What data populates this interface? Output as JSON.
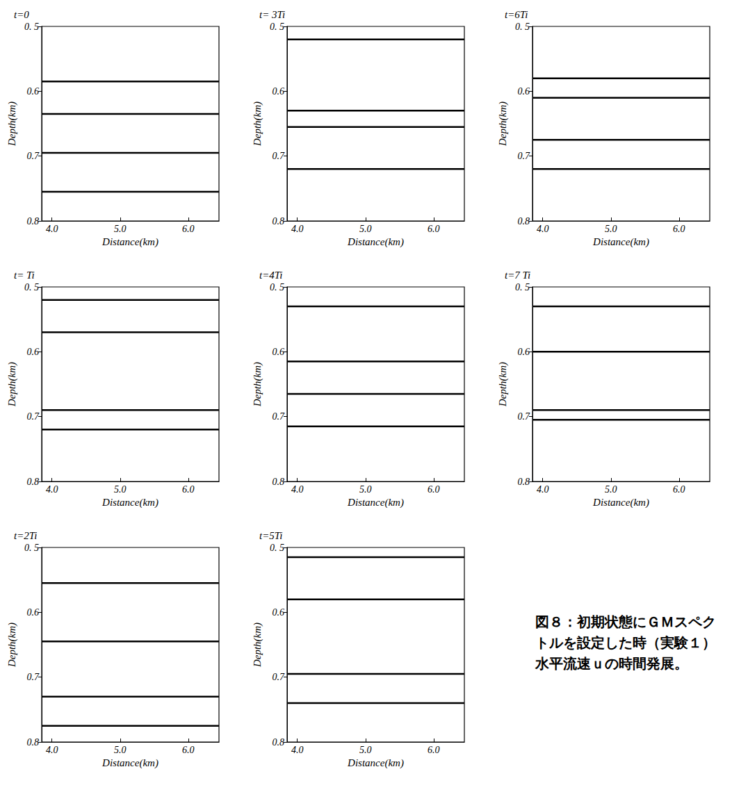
{
  "chart_data": [
    {
      "type": "contour",
      "title": "t=0",
      "x_label": "Distance(km)",
      "y_label": "Depth(km)",
      "xlim": [
        3.85,
        6.45
      ],
      "ylim": [
        0.5,
        0.8
      ],
      "xticks": [
        {
          "value": 4,
          "label": "4.0"
        },
        {
          "value": 5,
          "label": "5.0"
        },
        {
          "value": 6,
          "label": "6.0"
        }
      ],
      "yticks": [
        {
          "value": 0.5,
          "label": "0. 5"
        },
        0.6,
        0.7,
        0.8
      ],
      "layers": [
        0.585,
        0.635,
        0.695,
        0.755
      ],
      "color": "#000000"
    },
    {
      "type": "contour",
      "title": "t= Ti",
      "x_label": "Distance(km)",
      "y_label": "Depth(km)",
      "xlim": [
        3.85,
        6.45
      ],
      "ylim": [
        0.5,
        0.8
      ],
      "xticks": [
        {
          "value": 4,
          "label": "4.0"
        },
        {
          "value": 5,
          "label": "5.0"
        },
        {
          "value": 6,
          "label": "6.0"
        }
      ],
      "yticks": [
        {
          "value": 0.5,
          "label": "0. 5"
        },
        0.6,
        0.7,
        0.8
      ],
      "layers": [
        0.52,
        0.57,
        0.69,
        0.72
      ],
      "color": "#000000"
    },
    {
      "type": "contour",
      "title": "t=2Ti",
      "x_label": "Distance(km)",
      "y_label": "Depth(km)",
      "xlim": [
        3.85,
        6.45
      ],
      "ylim": [
        0.5,
        0.8
      ],
      "xticks": [
        {
          "value": 4,
          "label": "4.0"
        },
        {
          "value": 5,
          "label": "5.0"
        },
        {
          "value": 6,
          "label": "6.0"
        }
      ],
      "yticks": [
        {
          "value": 0.5,
          "label": "0. 5"
        },
        0.6,
        0.7,
        0.8
      ],
      "layers": [
        0.555,
        0.645,
        0.73,
        0.775
      ],
      "color": "#000000"
    },
    {
      "type": "contour",
      "title": "t= 3Ti",
      "x_label": "Distance(km)",
      "y_label": "Depth(km)",
      "xlim": [
        3.85,
        6.45
      ],
      "ylim": [
        0.5,
        0.8
      ],
      "xticks": [
        {
          "value": 4,
          "label": "4.0"
        },
        {
          "value": 5,
          "label": "5.0"
        },
        {
          "value": 6,
          "label": "6.0"
        }
      ],
      "yticks": [
        {
          "value": 0.5,
          "label": "0. 5"
        },
        0.6,
        0.7,
        0.8
      ],
      "layers": [
        0.52,
        0.63,
        0.655,
        0.72
      ],
      "color": "#000000"
    },
    {
      "type": "contour",
      "title": "t=4Ti",
      "x_label": "Distance(km)",
      "y_label": "Depth(km)",
      "xlim": [
        3.85,
        6.45
      ],
      "ylim": [
        0.5,
        0.8
      ],
      "xticks": [
        {
          "value": 4,
          "label": "4.0"
        },
        {
          "value": 5,
          "label": "5.0"
        },
        {
          "value": 6,
          "label": "6.0"
        }
      ],
      "yticks": [
        {
          "value": 0.5,
          "label": "0. 5"
        },
        0.6,
        0.7,
        0.8
      ],
      "layers": [
        0.53,
        0.615,
        0.665,
        0.715
      ],
      "color": "#000000"
    },
    {
      "type": "contour",
      "title": "t=5Ti",
      "x_label": "Distance(km)",
      "y_label": "Depth(km)",
      "xlim": [
        3.85,
        6.45
      ],
      "ylim": [
        0.5,
        0.8
      ],
      "xticks": [
        {
          "value": 4,
          "label": "4.0"
        },
        {
          "value": 5,
          "label": "5.0"
        },
        {
          "value": 6,
          "label": "6.0"
        }
      ],
      "yticks": [
        {
          "value": 0.5,
          "label": "0. 5"
        },
        0.6,
        0.7,
        0.8
      ],
      "layers": [
        0.515,
        0.58,
        0.695,
        0.74
      ],
      "color": "#000000"
    },
    {
      "type": "contour",
      "title": "t=6Ti",
      "x_label": "Distance(km)",
      "y_label": "Depth(km)",
      "xlim": [
        3.85,
        6.45
      ],
      "ylim": [
        0.5,
        0.8
      ],
      "xticks": [
        {
          "value": 4,
          "label": "4.0"
        },
        {
          "value": 5,
          "label": "5.0"
        },
        {
          "value": 6,
          "label": "6.0"
        }
      ],
      "yticks": [
        {
          "value": 0.5,
          "label": "0. 5"
        },
        0.6,
        0.7,
        0.8
      ],
      "layers": [
        0.58,
        0.61,
        0.675,
        0.72
      ],
      "color": "#000000"
    },
    {
      "type": "contour",
      "title": "t=7 Ti",
      "x_label": "Distance(km)",
      "y_label": "Depth(km)",
      "xlim": [
        3.85,
        6.45
      ],
      "ylim": [
        0.5,
        0.8
      ],
      "xticks": [
        {
          "value": 4,
          "label": "4.0"
        },
        {
          "value": 5,
          "label": "5.0"
        },
        {
          "value": 6,
          "label": "6.0"
        }
      ],
      "yticks": [
        {
          "value": 0.5,
          "label": "0. 5"
        },
        0.6,
        0.7,
        0.8
      ],
      "layers": [
        0.53,
        0.6,
        0.69,
        0.705
      ],
      "color": "#000000"
    }
  ],
  "caption": "図８：初期状態にＧＭスペクトルを設定した時（実験１）水平流速ｕの時間発展。"
}
